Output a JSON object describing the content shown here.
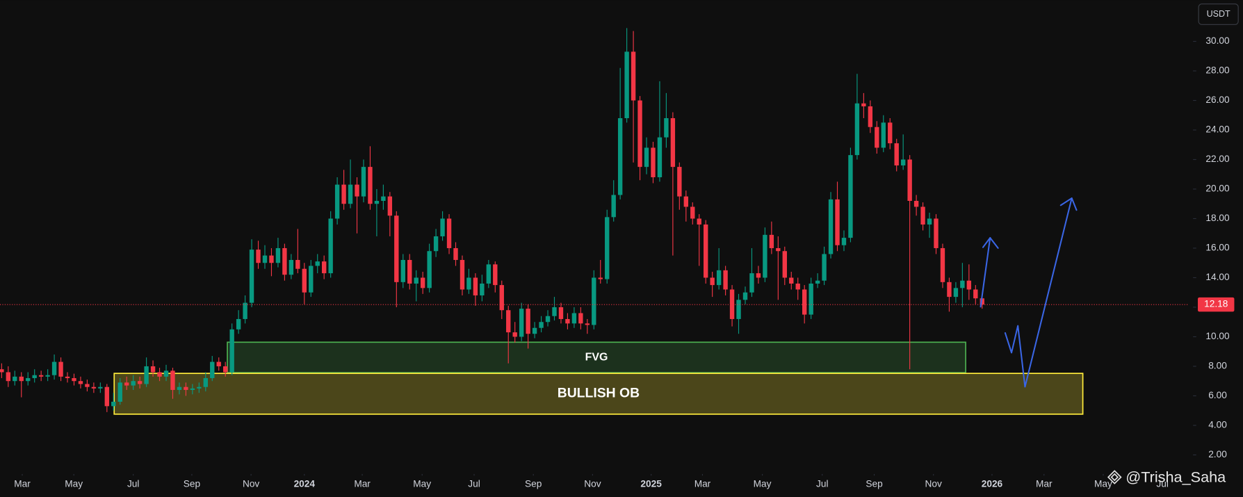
{
  "chart_data": {
    "type": "candlestick",
    "currency": "USDT",
    "watermark": "@Trisha_Saha",
    "up_color": "#089981",
    "down_color": "#f23645",
    "open": [
      7.8,
      7.6,
      7.0,
      7.3,
      7.0,
      7.2,
      7.4,
      7.3,
      7.4,
      8.3,
      7.3,
      7.2,
      7.0,
      6.8,
      6.6,
      6.5,
      6.6,
      5.3,
      5.6,
      6.9,
      6.7,
      7.0,
      6.8,
      8.0,
      7.6,
      7.3,
      7.7,
      6.4,
      6.6,
      6.4,
      6.5,
      6.6,
      7.2,
      8.3,
      8.0,
      7.6,
      10.5,
      11.2,
      12.3,
      15.9,
      15.0,
      15.5,
      15.0,
      16.0,
      14.2,
      15.2,
      14.6,
      13.0,
      14.8,
      15.1,
      14.3,
      18.0,
      20.3,
      19.0,
      20.3,
      19.5,
      21.5,
      19.0,
      19.2,
      19.5,
      18.2,
      13.7,
      15.2,
      13.6,
      14.0,
      13.3,
      15.8,
      16.8,
      18.0,
      16.0,
      15.2,
      13.2,
      14.0,
      12.8,
      13.6,
      14.9,
      13.5,
      11.8,
      10.3,
      10.0,
      11.9,
      10.2,
      10.6,
      11.0,
      11.4,
      12.0,
      11.2,
      10.9,
      11.6,
      10.9,
      10.8,
      14.0,
      13.9,
      18.1,
      19.6,
      24.8,
      29.3,
      26.0,
      21.5,
      22.8,
      20.8,
      23.5,
      24.8,
      21.5,
      19.5,
      18.8,
      18.0,
      17.6,
      14.0,
      13.5,
      14.5,
      13.2,
      11.2,
      12.5,
      13.0,
      14.3,
      14.0,
      16.9,
      16.0,
      15.8,
      14.0,
      13.6,
      13.2,
      11.5,
      13.6,
      13.8,
      15.6,
      19.3,
      16.2,
      16.7,
      22.3,
      25.8,
      25.6,
      24.2,
      22.8,
      24.5,
      23.1,
      21.6,
      22.0,
      19.2,
      18.8,
      17.6,
      18.0,
      16.0,
      13.7,
      12.7,
      13.3,
      13.8,
      13.2,
      12.6
    ],
    "high": [
      8.2,
      8.0,
      7.7,
      7.6,
      7.6,
      7.8,
      7.7,
      7.8,
      8.8,
      8.6,
      7.6,
      7.5,
      7.3,
      7.1,
      6.9,
      6.9,
      6.8,
      6.2,
      7.2,
      7.3,
      7.4,
      7.3,
      8.6,
      8.4,
      7.9,
      8.1,
      7.9,
      6.9,
      6.9,
      6.8,
      6.9,
      7.6,
      8.7,
      8.6,
      8.3,
      10.9,
      11.8,
      12.8,
      16.6,
      16.5,
      16.2,
      16.0,
      16.7,
      16.3,
      15.6,
      17.3,
      15.0,
      15.2,
      15.6,
      15.5,
      18.5,
      20.8,
      21.3,
      22.0,
      20.8,
      22.0,
      22.9,
      20.0,
      20.3,
      19.8,
      18.5,
      15.6,
      15.6,
      14.5,
      14.4,
      16.3,
      17.3,
      18.5,
      18.3,
      16.4,
      15.5,
      14.6,
      14.3,
      14.2,
      15.2,
      15.1,
      13.8,
      12.1,
      11.0,
      12.3,
      12.2,
      11.0,
      11.4,
      11.8,
      12.7,
      12.3,
      11.6,
      12.0,
      12.0,
      11.2,
      14.5,
      15.2,
      18.6,
      20.6,
      28.2,
      30.9,
      30.7,
      26.3,
      23.5,
      23.2,
      27.3,
      26.5,
      25.2,
      21.8,
      19.9,
      19.1,
      18.3,
      17.9,
      14.4,
      16.0,
      14.8,
      13.5,
      12.9,
      13.4,
      16.0,
      14.8,
      17.4,
      17.8,
      16.8,
      16.1,
      14.4,
      14.0,
      13.5,
      14.0,
      14.3,
      16.1,
      19.8,
      20.5,
      17.2,
      22.8,
      27.8,
      26.5,
      26.0,
      24.6,
      25.0,
      24.8,
      23.4,
      23.7,
      22.3,
      19.6,
      19.1,
      18.4,
      18.3,
      16.3,
      14.0,
      13.7,
      15.0,
      14.9,
      13.5,
      12.8
    ],
    "low": [
      7.2,
      6.6,
      6.7,
      5.9,
      6.7,
      6.9,
      7.0,
      7.0,
      7.1,
      7.0,
      6.9,
      6.7,
      6.5,
      6.3,
      6.2,
      6.2,
      4.9,
      5.0,
      5.4,
      6.4,
      6.4,
      6.5,
      6.6,
      7.3,
      7.0,
      7.0,
      5.8,
      6.1,
      6.0,
      6.1,
      6.2,
      6.3,
      7.0,
      7.7,
      7.3,
      7.4,
      10.2,
      10.9,
      12.0,
      14.6,
      14.6,
      14.1,
      14.7,
      13.8,
      13.9,
      14.3,
      12.2,
      12.7,
      14.3,
      13.9,
      14.0,
      17.6,
      18.6,
      18.7,
      17.0,
      19.1,
      18.6,
      16.8,
      18.6,
      16.8,
      12.0,
      13.3,
      13.2,
      12.4,
      12.9,
      13.0,
      15.4,
      16.5,
      15.6,
      14.8,
      12.8,
      12.9,
      12.1,
      12.4,
      13.3,
      13.0,
      11.2,
      8.2,
      9.6,
      9.7,
      9.2,
      9.9,
      10.3,
      10.7,
      11.1,
      10.9,
      10.5,
      10.6,
      10.5,
      10.2,
      10.5,
      13.6,
      13.6,
      17.8,
      19.3,
      24.5,
      21.8,
      20.6,
      21.0,
      20.4,
      20.5,
      22.8,
      15.5,
      18.6,
      17.8,
      17.6,
      14.8,
      13.6,
      12.7,
      13.2,
      12.8,
      10.7,
      10.2,
      12.2,
      12.7,
      13.6,
      13.7,
      15.6,
      12.5,
      13.5,
      13.2,
      12.5,
      10.9,
      11.2,
      13.3,
      13.5,
      15.3,
      15.8,
      15.8,
      16.4,
      22.0,
      24.8,
      23.8,
      22.4,
      22.5,
      22.7,
      21.2,
      21.3,
      7.8,
      18.2,
      17.2,
      16.7,
      15.6,
      13.3,
      11.7,
      12.3,
      12.0,
      12.5,
      12.2,
      11.9
    ],
    "close": [
      7.6,
      7.0,
      7.3,
      7.0,
      7.2,
      7.4,
      7.3,
      7.4,
      8.3,
      7.3,
      7.2,
      7.0,
      6.8,
      6.6,
      6.5,
      6.6,
      5.3,
      5.6,
      6.9,
      6.7,
      7.0,
      6.8,
      8.0,
      7.6,
      7.3,
      7.7,
      6.4,
      6.6,
      6.4,
      6.5,
      6.6,
      7.2,
      8.3,
      8.0,
      7.6,
      10.5,
      11.2,
      12.3,
      15.9,
      15.0,
      15.5,
      15.0,
      16.0,
      14.2,
      15.2,
      14.6,
      13.0,
      14.8,
      15.1,
      14.3,
      18.0,
      20.3,
      19.0,
      20.3,
      19.5,
      21.5,
      19.0,
      19.2,
      19.5,
      18.2,
      13.7,
      15.2,
      13.6,
      14.0,
      13.3,
      15.8,
      16.8,
      18.0,
      16.0,
      15.2,
      13.2,
      14.0,
      12.8,
      13.6,
      14.9,
      13.5,
      11.8,
      10.3,
      10.0,
      11.9,
      10.2,
      10.6,
      11.0,
      11.4,
      12.0,
      11.2,
      10.9,
      11.6,
      10.9,
      10.8,
      14.0,
      13.9,
      18.1,
      19.6,
      24.8,
      29.3,
      26.0,
      21.5,
      22.8,
      20.8,
      23.5,
      24.8,
      21.5,
      19.5,
      18.8,
      18.0,
      17.6,
      14.0,
      13.5,
      14.5,
      13.2,
      11.2,
      12.5,
      13.0,
      14.3,
      14.0,
      16.9,
      16.0,
      15.8,
      14.0,
      13.6,
      13.2,
      11.5,
      13.6,
      13.8,
      15.6,
      19.3,
      16.2,
      16.7,
      22.3,
      25.8,
      25.6,
      24.2,
      22.8,
      24.5,
      23.1,
      21.6,
      22.0,
      19.2,
      18.8,
      17.6,
      18.0,
      16.0,
      13.7,
      12.7,
      13.3,
      13.8,
      13.2,
      12.6,
      12.18
    ],
    "last_price": 12.18,
    "last_price_color": "#f23645",
    "zones": [
      {
        "label": "FVG",
        "x": [
          34.3,
          146.5
        ],
        "y": [
          7.57,
          9.63
        ],
        "color": "#4caf50"
      },
      {
        "label": "BULLISH OB",
        "x": [
          17.1,
          164.3
        ],
        "y": [
          4.76,
          7.52
        ],
        "color": "#ffeb3b"
      }
    ],
    "xlim": [
      -0.25,
      180.45
    ],
    "xticks": [
      {
        "value": 3.13,
        "label": "Mar"
      },
      {
        "value": 10.97,
        "label": "May"
      },
      {
        "value": 20.0,
        "label": "Jul"
      },
      {
        "value": 28.9,
        "label": "Sep"
      },
      {
        "value": 37.9,
        "label": "Nov"
      },
      {
        "value": 46.0,
        "label": "2024"
      },
      {
        "value": 54.8,
        "label": "Mar"
      },
      {
        "value": 63.9,
        "label": "May"
      },
      {
        "value": 71.8,
        "label": "Jul"
      },
      {
        "value": 80.8,
        "label": "Sep"
      },
      {
        "value": 89.8,
        "label": "Nov"
      },
      {
        "value": 98.7,
        "label": "2025"
      },
      {
        "value": 106.5,
        "label": "Mar"
      },
      {
        "value": 115.6,
        "label": "May"
      },
      {
        "value": 124.7,
        "label": "Jul"
      },
      {
        "value": 132.6,
        "label": "Sep"
      },
      {
        "value": 141.6,
        "label": "Nov"
      },
      {
        "value": 150.5,
        "label": "2026"
      },
      {
        "value": 158.4,
        "label": "Mar"
      },
      {
        "value": 167.4,
        "label": "May"
      },
      {
        "value": 176.4,
        "label": "Jul"
      }
    ],
    "ylim": [
      0.6,
      32.8
    ],
    "yticks": [
      {
        "value": 2,
        "label": "2.00"
      },
      {
        "value": 4,
        "label": "4.00"
      },
      {
        "value": 6,
        "label": "6.00"
      },
      {
        "value": 8,
        "label": "8.00"
      },
      {
        "value": 10,
        "label": "10.00"
      },
      {
        "value": 12,
        "label": "12.00"
      },
      {
        "value": 14,
        "label": "14.00"
      },
      {
        "value": 16,
        "label": "16.00"
      },
      {
        "value": 18,
        "label": "18.00"
      },
      {
        "value": 20,
        "label": "20.00"
      },
      {
        "value": 22,
        "label": "22.00"
      },
      {
        "value": 24,
        "label": "24.00"
      },
      {
        "value": 26,
        "label": "26.00"
      },
      {
        "value": 28,
        "label": "28.00"
      },
      {
        "value": 30,
        "label": "30.00"
      }
    ]
  }
}
